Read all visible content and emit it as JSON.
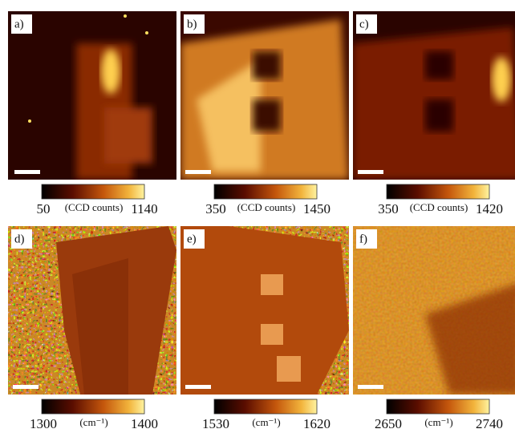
{
  "panels": [
    {
      "label": "a)",
      "colorbar": {
        "min": 50,
        "max": 1140,
        "unit": "(CCD counts)"
      }
    },
    {
      "label": "b)",
      "colorbar": {
        "min": 350,
        "max": 1450,
        "unit": "(CCD counts)"
      }
    },
    {
      "label": "c)",
      "colorbar": {
        "min": 350,
        "max": 1420,
        "unit": "(CCD counts)"
      }
    },
    {
      "label": "d)",
      "colorbar": {
        "min": 1300,
        "max": 1400,
        "unit": "(cm⁻¹)"
      }
    },
    {
      "label": "e)",
      "colorbar": {
        "min": 1530,
        "max": 1620,
        "unit": "(cm⁻¹)"
      }
    },
    {
      "label": "f)",
      "colorbar": {
        "min": 2650,
        "max": 2740,
        "unit": "(cm⁻¹)"
      }
    }
  ]
}
